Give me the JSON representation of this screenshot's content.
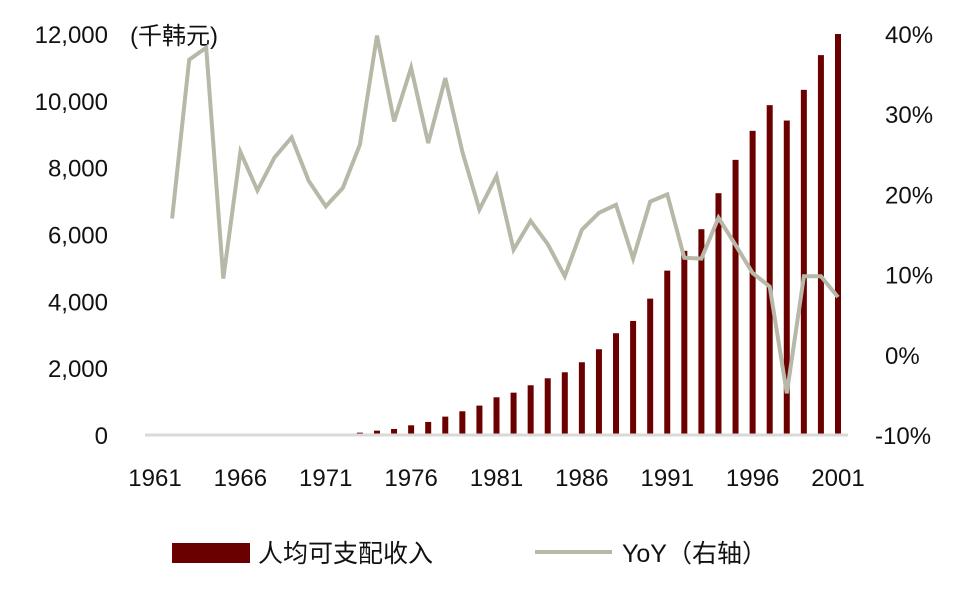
{
  "chart_data": {
    "type": "bar+line",
    "unit_label": "(千韩元)",
    "colors": {
      "bar": "#6b0000",
      "line": "#b8b8a8",
      "axis": "#d9d9d9"
    },
    "x": [
      1961,
      1962,
      1963,
      1964,
      1965,
      1966,
      1967,
      1968,
      1969,
      1970,
      1971,
      1972,
      1973,
      1974,
      1975,
      1976,
      1977,
      1978,
      1979,
      1980,
      1981,
      1982,
      1983,
      1984,
      1985,
      1986,
      1987,
      1988,
      1989,
      1990,
      1991,
      1992,
      1993,
      1994,
      1995,
      1996,
      1997,
      1998,
      1999,
      2000,
      2001
    ],
    "x_tick_labels": [
      "1961",
      "1966",
      "1971",
      "1976",
      "1981",
      "1986",
      "1991",
      "1996",
      "2001"
    ],
    "left_axis": {
      "ylim": [
        0,
        12000
      ],
      "tick_labels": [
        "0",
        "2,000",
        "4,000",
        "6,000",
        "8,000",
        "10,000",
        "12,000"
      ]
    },
    "right_axis": {
      "ylim": [
        -10,
        40
      ],
      "tick_labels": [
        "-10%",
        "0%",
        "10%",
        "20%",
        "30%",
        "40%"
      ]
    },
    "series": [
      {
        "name": "人均可支配收入",
        "type": "bar",
        "axis": "left",
        "values": [
          5,
          6,
          8,
          11,
          12,
          15,
          17,
          20,
          24,
          28,
          32,
          40,
          70,
          130,
          180,
          290,
          390,
          550,
          710,
          880,
          1128,
          1267,
          1488,
          1697,
          1877,
          2177,
          2566,
          3045,
          3413,
          4081,
          4919,
          5509,
          6158,
          7236,
          8234,
          9102,
          9871,
          9410,
          10329,
          11368,
          12000
        ]
      },
      {
        "name": "YoY（右轴）",
        "type": "line",
        "axis": "right",
        "values": [
          null,
          17.0,
          36.8,
          38.3,
          9.5,
          25.3,
          20.5,
          24.6,
          27.1,
          21.7,
          18.5,
          20.8,
          26.2,
          39.8,
          29.1,
          35.8,
          26.4,
          34.5,
          25.3,
          18.1,
          22.3,
          13.1,
          16.7,
          13.8,
          9.8,
          15.6,
          17.7,
          18.7,
          12.0,
          19.1,
          20.0,
          12.1,
          12.0,
          17.1,
          13.7,
          10.2,
          8.5,
          -4.8,
          9.8,
          9.8,
          7.2
        ]
      }
    ],
    "legend": {
      "placement": "bottom",
      "bar_label": "人均可支配收入",
      "line_label": "YoY（右轴）"
    }
  }
}
